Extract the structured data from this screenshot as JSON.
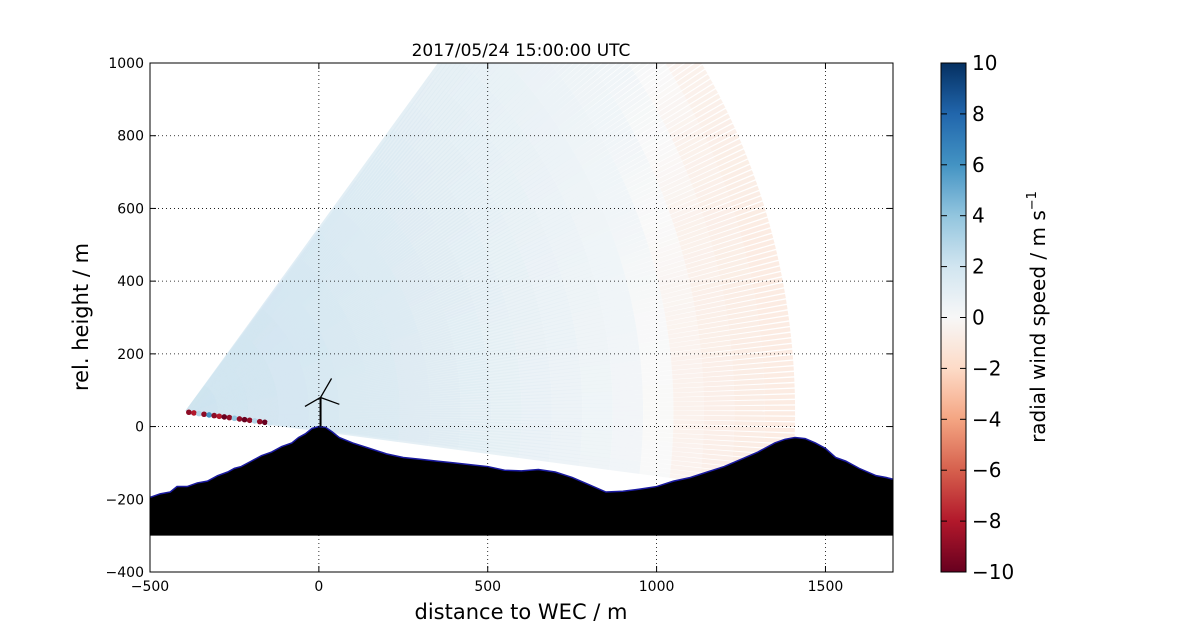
{
  "chart_data": {
    "type": "heatmap",
    "title": "2017/05/24 15:00:00 UTC",
    "xlabel": "distance to WEC / m",
    "ylabel": "rel. height / m",
    "xlim": [
      -500,
      1700
    ],
    "ylim": [
      -400,
      1000
    ],
    "xticks": [
      -500,
      0,
      500,
      1000,
      1500
    ],
    "xtick_labels": [
      "−500",
      "0",
      "500",
      "1000",
      "1500"
    ],
    "yticks": [
      -400,
      -200,
      0,
      200,
      400,
      600,
      800,
      1000
    ],
    "ytick_labels": [
      "−400",
      "−200",
      "0",
      "200",
      "400",
      "600",
      "800",
      "1000"
    ],
    "grid": true,
    "colormap": "RdBu",
    "colorbar": {
      "label": "radial wind speed / m s",
      "label_superscript": "−1",
      "range": [
        -10,
        10
      ],
      "ticks": [
        10,
        8,
        6,
        4,
        2,
        0,
        -2,
        -4,
        -6,
        -8,
        -10
      ],
      "tick_labels": [
        "10",
        "8",
        "6",
        "4",
        "2",
        "0",
        "−2",
        "−4",
        "−6",
        "−8",
        "−10"
      ]
    },
    "scan": {
      "origin": [
        -390,
        40
      ],
      "max_range_m": 1800,
      "min_elevation_deg": -7,
      "max_elevation_deg": 52,
      "wind_speed_profile": {
        "x": [
          -500,
          0,
          500,
          900,
          1000,
          1100,
          1300,
          1700
        ],
        "v": [
          2.2,
          1.7,
          1.2,
          0.6,
          0.0,
          -0.7,
          -1.2,
          -1.6
        ]
      },
      "near_ground_beam_points": {
        "x": [
          -385,
          -370,
          -355,
          -340,
          -325,
          -310,
          -295,
          -280,
          -265,
          -250,
          -235,
          -220,
          -205,
          -190,
          -175,
          -160,
          -145
        ],
        "v": [
          -9,
          -8,
          3,
          -9,
          6,
          -9,
          -8,
          -10,
          -9,
          4,
          -9,
          -10,
          -9,
          3,
          -9,
          -10,
          2
        ]
      }
    },
    "terrain": {
      "floor": -300,
      "x": [
        -500,
        -470,
        -440,
        -420,
        -390,
        -360,
        -330,
        -300,
        -270,
        -250,
        -230,
        -200,
        -170,
        -140,
        -110,
        -80,
        -60,
        -40,
        -20,
        0,
        20,
        40,
        60,
        100,
        150,
        200,
        250,
        300,
        350,
        400,
        450,
        500,
        550,
        600,
        650,
        700,
        750,
        800,
        850,
        900,
        950,
        1000,
        1050,
        1100,
        1150,
        1200,
        1250,
        1300,
        1350,
        1380,
        1410,
        1440,
        1470,
        1500,
        1530,
        1560,
        1600,
        1650,
        1680,
        1700
      ],
      "y": [
        -195,
        -185,
        -180,
        -165,
        -165,
        -155,
        -150,
        -135,
        -125,
        -115,
        -110,
        -95,
        -80,
        -70,
        -55,
        -45,
        -30,
        -20,
        -5,
        0,
        -2,
        -15,
        -30,
        -45,
        -60,
        -75,
        -85,
        -90,
        -95,
        -100,
        -105,
        -110,
        -120,
        -122,
        -118,
        -125,
        -140,
        -160,
        -180,
        -178,
        -172,
        -165,
        -150,
        -140,
        -125,
        -110,
        -90,
        -70,
        -45,
        -35,
        -30,
        -33,
        -45,
        -60,
        -85,
        -95,
        -115,
        -135,
        -140,
        -145
      ]
    },
    "turbine": {
      "x": 5,
      "hub_height": 80,
      "tower_base": 0
    }
  }
}
